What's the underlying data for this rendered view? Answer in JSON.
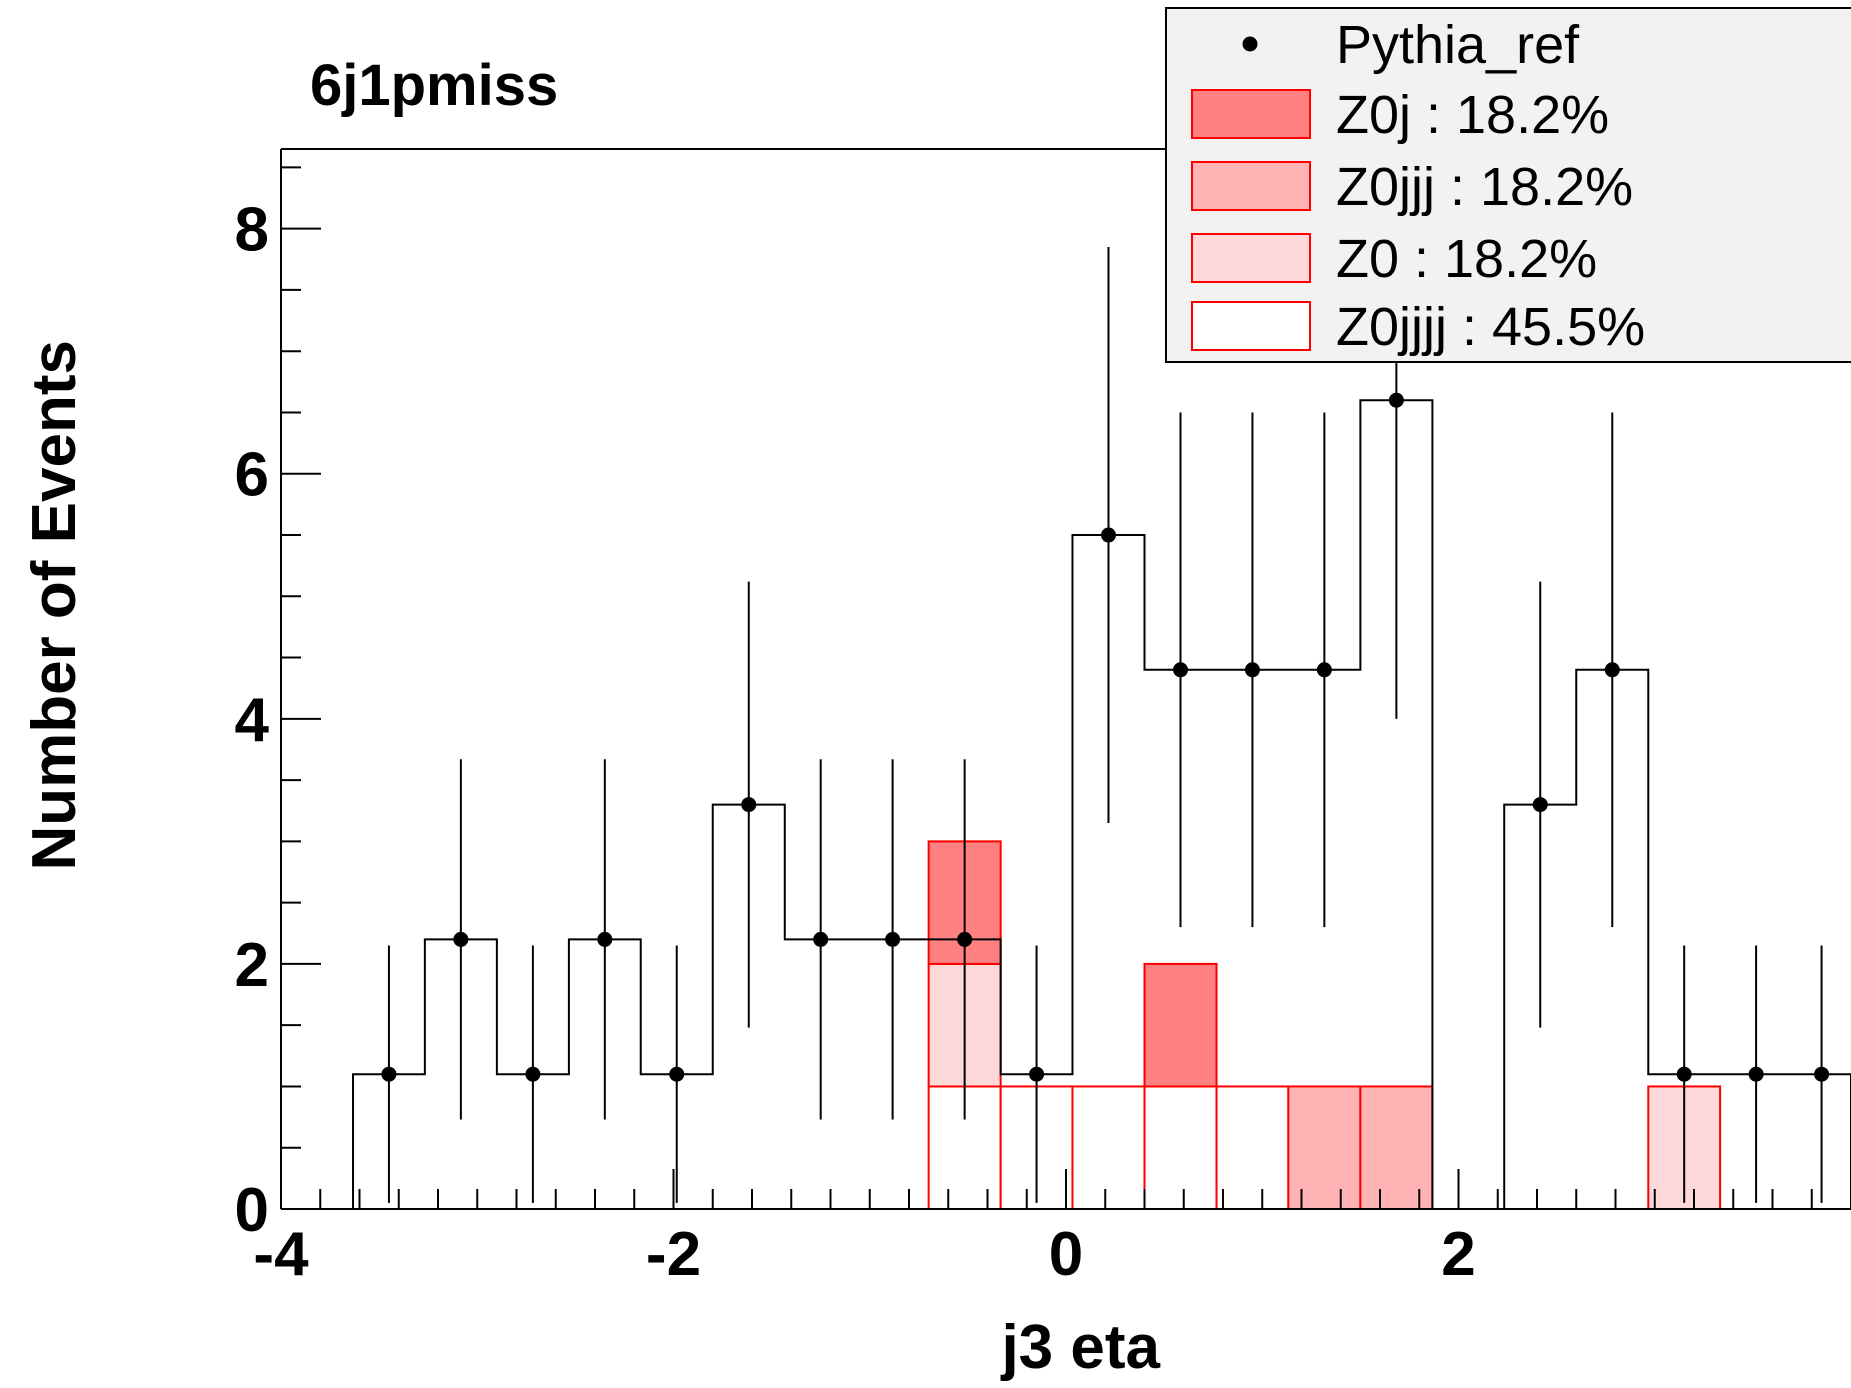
{
  "chart_data": {
    "type": "bar",
    "title": "6j1pmiss",
    "xlabel": "j3 eta",
    "ylabel": "Number of Events",
    "xlim": [
      -4,
      4
    ],
    "ylim": [
      0,
      8.65
    ],
    "x_ticks": [
      -4,
      -2,
      0,
      2
    ],
    "x_tick_labels": [
      "-4",
      "-2",
      "0",
      "2"
    ],
    "y_ticks": [
      0,
      2,
      4,
      6,
      8
    ],
    "y_tick_labels": [
      "0",
      "2",
      "4",
      "6",
      "8"
    ],
    "bin_edges": [
      -4.0,
      -3.633,
      -3.267,
      -2.9,
      -2.533,
      -2.167,
      -1.8,
      -1.433,
      -1.067,
      -0.7,
      -0.333,
      0.033,
      0.4,
      0.767,
      1.133,
      1.5,
      1.867,
      2.233,
      2.6,
      2.967,
      3.333,
      3.7,
      4.0
    ],
    "grid": false,
    "legend_position": "top-right",
    "stacked": true,
    "series": [
      {
        "name": "Z0jjjj : 45.5%",
        "kind": "hist",
        "color": "#ffffff",
        "edge_color": "#ff0000",
        "values": [
          0,
          0,
          0,
          0,
          0,
          0,
          0,
          0,
          0,
          1.0,
          1.0,
          1.0,
          1.0,
          1.0,
          0,
          0,
          0,
          0,
          0,
          0,
          0,
          0
        ]
      },
      {
        "name": "Z0 : 18.2%",
        "kind": "hist",
        "color": "#ffd9da",
        "edge_color": "#ff0000",
        "values": [
          0,
          0,
          0,
          0,
          0,
          0,
          0,
          0,
          0,
          1.0,
          0,
          0,
          0,
          0,
          0,
          0,
          0,
          0,
          0,
          1.0,
          0,
          0
        ]
      },
      {
        "name": "Z0jjj : 18.2%",
        "kind": "hist",
        "color": "#ffb3b4",
        "edge_color": "#ff0000",
        "values": [
          0,
          0,
          0,
          0,
          0,
          0,
          0,
          0,
          0,
          0,
          0,
          0,
          0,
          0,
          1.0,
          1.0,
          0,
          0,
          0,
          0,
          0,
          0
        ]
      },
      {
        "name": "Z0j : 18.2%",
        "kind": "hist",
        "color": "#ff8080",
        "edge_color": "#ff0000",
        "values": [
          0,
          0,
          0,
          0,
          0,
          0,
          0,
          0,
          0,
          1.0,
          0,
          0,
          1.0,
          0,
          0,
          0,
          0,
          0,
          0,
          0,
          0,
          0
        ]
      },
      {
        "name": "Pythia_ref",
        "kind": "points",
        "values": [
          0,
          1.1,
          2.2,
          1.1,
          2.2,
          1.1,
          3.3,
          2.2,
          2.2,
          2.2,
          1.1,
          5.5,
          4.4,
          4.4,
          4.4,
          6.6,
          0,
          3.3,
          4.4,
          1.1,
          1.1,
          1.1
        ],
        "err_low": [
          0,
          1.05,
          1.47,
          1.05,
          1.47,
          1.05,
          1.82,
          1.47,
          1.47,
          1.47,
          1.05,
          2.35,
          2.1,
          2.1,
          2.1,
          2.6,
          0,
          1.82,
          2.1,
          1.05,
          1.05,
          1.05
        ],
        "err_high": [
          0,
          1.05,
          1.47,
          1.05,
          1.47,
          1.05,
          1.82,
          1.47,
          1.47,
          1.47,
          1.05,
          2.35,
          2.1,
          2.1,
          2.1,
          2.6,
          0,
          1.82,
          2.1,
          1.05,
          1.05,
          1.05
        ]
      }
    ],
    "legend": [
      {
        "label": "Pythia_ref",
        "style": "marker"
      },
      {
        "label": "Z0j : 18.2%",
        "style": "box",
        "color": "#ff8080"
      },
      {
        "label": "Z0jjj : 18.2%",
        "style": "box",
        "color": "#ffb3b4"
      },
      {
        "label": "Z0 : 18.2%",
        "style": "box",
        "color": "#ffd9da"
      },
      {
        "label": "Z0jjjj : 45.5%",
        "style": "box",
        "color": "#ffffff"
      }
    ]
  }
}
